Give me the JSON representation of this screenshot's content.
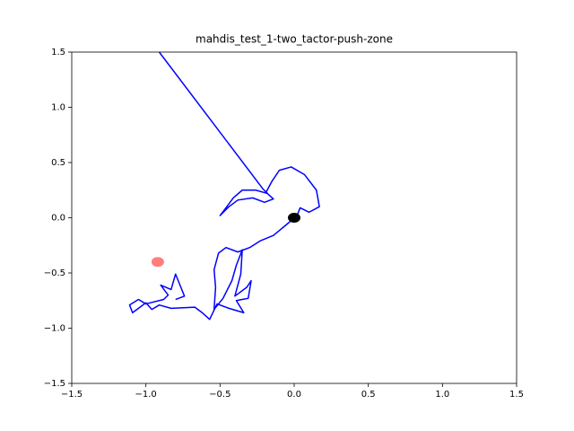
{
  "chart_data": {
    "type": "line",
    "title": "mahdis_test_1-two_tactor-push-zone",
    "xlim": [
      -1.5,
      1.5
    ],
    "ylim": [
      -1.5,
      1.5
    ],
    "xticks": [
      {
        "value": -1.5,
        "label": "−1.5"
      },
      {
        "value": -1.0,
        "label": "−1.0"
      },
      {
        "value": -0.5,
        "label": "−0.5"
      },
      {
        "value": 0,
        "label": "0.0"
      },
      0.5,
      {
        "value": 1.0,
        "label": "1.0"
      },
      1.5
    ],
    "yticks": [
      {
        "value": -1.5,
        "label": "−1.5"
      },
      {
        "value": -1.0,
        "label": "−1.0"
      },
      {
        "value": -0.5,
        "label": "−0.5"
      },
      {
        "value": 0,
        "label": "0.0"
      },
      0.5,
      {
        "value": 1.0,
        "label": "1.0"
      },
      1.5
    ],
    "series": [
      {
        "color": "blue",
        "x": [
          -0.91,
          -0.21,
          -0.18,
          -0.26,
          -0.35,
          -0.41,
          -0.46,
          -0.5,
          -0.44,
          -0.38,
          -0.28,
          -0.2,
          -0.14,
          -0.19,
          -0.15,
          -0.1,
          -0.02,
          0.07,
          0.15,
          0.17,
          0.1,
          0.04,
          0.02,
          -0.05,
          -0.14,
          -0.23,
          -0.3,
          -0.38,
          -0.46,
          -0.51,
          -0.54,
          -0.53,
          -0.54,
          -0.48,
          -0.42,
          -0.39,
          -0.35,
          -0.36,
          -0.4,
          -0.32,
          -0.29,
          -0.31,
          -0.39,
          -0.34,
          -0.44,
          -0.52,
          -0.57,
          -0.62,
          -0.67,
          -0.83,
          -0.91,
          -0.96,
          -1.0,
          -1.05,
          -1.09,
          -1.11,
          -1.05,
          -1.0,
          -0.88,
          -0.85,
          -0.9,
          -0.83,
          -0.8,
          -0.77,
          -0.74,
          -0.8
        ],
        "y": [
          1.5,
          0.26,
          0.22,
          0.25,
          0.25,
          0.18,
          0.09,
          0.02,
          0.1,
          0.16,
          0.18,
          0.14,
          0.17,
          0.23,
          0.33,
          0.43,
          0.46,
          0.39,
          0.25,
          0.1,
          0.05,
          0.09,
          0.02,
          -0.06,
          -0.16,
          -0.21,
          -0.27,
          -0.31,
          -0.27,
          -0.32,
          -0.47,
          -0.63,
          -0.83,
          -0.73,
          -0.57,
          -0.43,
          -0.29,
          -0.51,
          -0.71,
          -0.63,
          -0.57,
          -0.73,
          -0.75,
          -0.86,
          -0.82,
          -0.78,
          -0.92,
          -0.86,
          -0.81,
          -0.82,
          -0.79,
          -0.83,
          -0.77,
          -0.82,
          -0.86,
          -0.79,
          -0.74,
          -0.78,
          -0.74,
          -0.7,
          -0.61,
          -0.65,
          -0.51,
          -0.61,
          -0.71,
          -0.74
        ]
      }
    ],
    "points": [
      {
        "x": -0.92,
        "y": -0.4,
        "color": "red",
        "alpha": 0.5
      },
      {
        "x": 0,
        "y": 0,
        "color": "black",
        "alpha": 1
      }
    ]
  }
}
